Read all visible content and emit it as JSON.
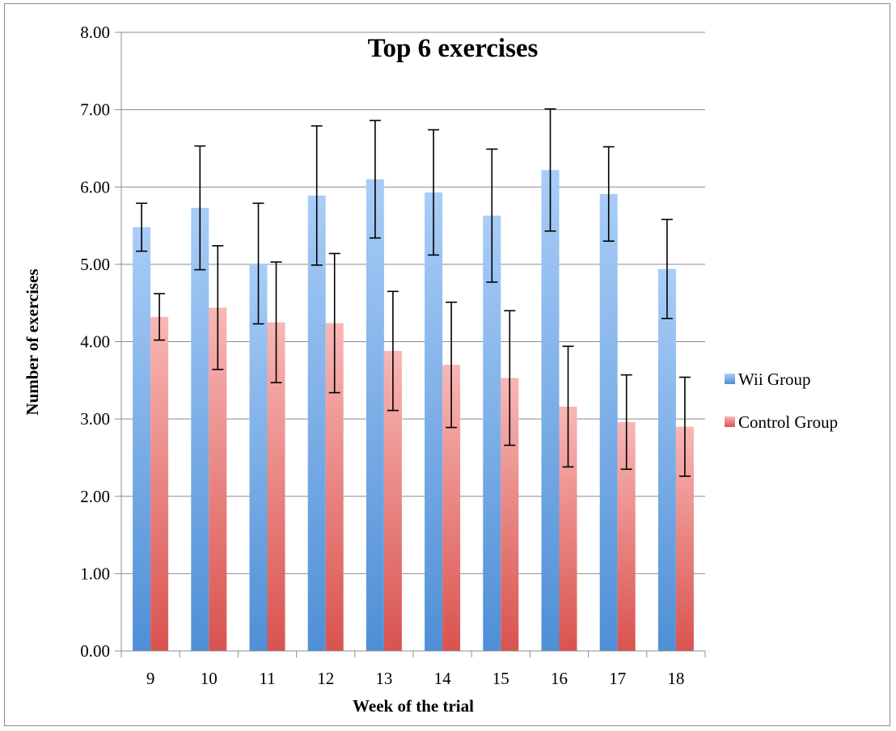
{
  "chart_data": {
    "type": "bar",
    "title": "Top 6 exercises",
    "xlabel": "Week of the trial",
    "ylabel": "Number of exercises",
    "ylim": [
      0,
      8
    ],
    "yticks": [
      "0.00",
      "1.00",
      "2.00",
      "3.00",
      "4.00",
      "5.00",
      "6.00",
      "7.00",
      "8.00"
    ],
    "grid": true,
    "legend_position": "right",
    "categories": [
      "9",
      "10",
      "11",
      "12",
      "13",
      "14",
      "15",
      "16",
      "17",
      "18"
    ],
    "series": [
      {
        "name": "Wii Group",
        "color_top": "#a9cdf7",
        "color_bottom": "#4f8fd6",
        "values": [
          5.48,
          5.73,
          5.01,
          5.89,
          6.1,
          5.93,
          5.63,
          6.22,
          5.91,
          4.94
        ],
        "error": [
          0.31,
          0.8,
          0.78,
          0.9,
          0.76,
          0.81,
          0.86,
          0.79,
          0.61,
          0.64
        ]
      },
      {
        "name": "Control Group",
        "color_top": "#f8b7b5",
        "color_bottom": "#d9534f",
        "values": [
          4.32,
          4.44,
          4.25,
          4.24,
          3.88,
          3.7,
          3.53,
          3.16,
          2.96,
          2.9
        ],
        "error": [
          0.3,
          0.8,
          0.78,
          0.9,
          0.77,
          0.81,
          0.87,
          0.78,
          0.61,
          0.64
        ]
      }
    ]
  }
}
